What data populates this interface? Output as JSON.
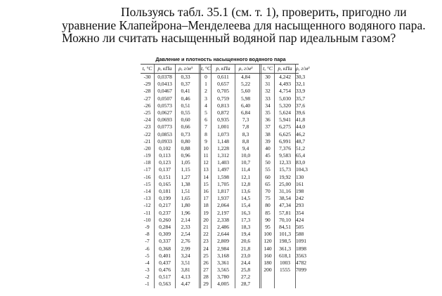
{
  "problem": {
    "text": "Пользуясь табл. 35.1 (см. т. 1), проверить, пригодно ли уравнение Клапейрона–Менделеева для насыщенного водяного пара. Можно ли считать насыщенный водяной пар идеальным газом?"
  },
  "table": {
    "title": "Давление и плотность насыщенного водяного пара",
    "headers": [
      "t, °C",
      "p, кПа",
      "ρ, г/м³",
      "t, °C",
      "p, кПа",
      "ρ, г/м³",
      "t, °C",
      "p, кПа",
      "ρ, г/м³"
    ],
    "rows": [
      [
        "-30",
        "0,0378",
        "0,33",
        "0",
        "0,611",
        "4,84",
        "30",
        "4,242",
        "30,3"
      ],
      [
        "-29",
        "0,0413",
        "0,37",
        "1",
        "0,657",
        "5,22",
        "31",
        "4,493",
        "32,1"
      ],
      [
        "-28",
        "0,0467",
        "0,41",
        "2",
        "0,705",
        "5,60",
        "32",
        "4,754",
        "33,9"
      ],
      [
        "-27",
        "0,0507",
        "0,46",
        "3",
        "0,759",
        "5,98",
        "33",
        "5,030",
        "35,7"
      ],
      [
        "-26",
        "0,0573",
        "0,51",
        "4",
        "0,813",
        "6,40",
        "34",
        "5,320",
        "37,6"
      ],
      [
        "-25",
        "0,0627",
        "0,55",
        "5",
        "0,872",
        "6,84",
        "35",
        "5,624",
        "39,6"
      ],
      [
        "-24",
        "0,0693",
        "0,60",
        "6",
        "0,935",
        "7,3",
        "36",
        "5,941",
        "41,8"
      ],
      [
        "-23",
        "0,0773",
        "0,66",
        "7",
        "1,001",
        "7,8",
        "37",
        "6,275",
        "44,0"
      ],
      [
        "-22",
        "0,0853",
        "0,73",
        "8",
        "1,073",
        "8,3",
        "38",
        "6,625",
        "46,2"
      ],
      [
        "-21",
        "0,0933",
        "0,80",
        "9",
        "1,148",
        "8,8",
        "39",
        "6,991",
        "48,7"
      ],
      [
        "-20",
        "0,102",
        "0,88",
        "10",
        "1,228",
        "9,4",
        "40",
        "7,376",
        "51,2"
      ],
      [
        "-19",
        "0,113",
        "0,96",
        "11",
        "1,312",
        "10,0",
        "45",
        "9,583",
        "65,4"
      ],
      [
        "-18",
        "0,123",
        "1,05",
        "12",
        "1,403",
        "10,7",
        "50",
        "12,33",
        "83,0"
      ],
      [
        "-17",
        "0,137",
        "1,15",
        "13",
        "1,497",
        "11,4",
        "55",
        "15,73",
        "104,3"
      ],
      [
        "-16",
        "0,151",
        "1,27",
        "14",
        "1,598",
        "12,1",
        "60",
        "19,92",
        "130"
      ],
      [
        "-15",
        "0,165",
        "1,38",
        "15",
        "1,705",
        "12,8",
        "65",
        "25,00",
        "161"
      ],
      [
        "-14",
        "0,181",
        "1,51",
        "16",
        "1,817",
        "13,6",
        "70",
        "31,16",
        "198"
      ],
      [
        "-13",
        "0,199",
        "1,65",
        "17",
        "1,937",
        "14,5",
        "75",
        "38,54",
        "242"
      ],
      [
        "-12",
        "0,217",
        "1,80",
        "18",
        "2,064",
        "15,4",
        "80",
        "47,34",
        "293"
      ],
      [
        "-11",
        "0,237",
        "1,96",
        "19",
        "2,197",
        "16,3",
        "85",
        "57,81",
        "354"
      ],
      [
        "-10",
        "0,260",
        "2,14",
        "20",
        "2,338",
        "17,3",
        "90",
        "70,10",
        "424"
      ],
      [
        "-9",
        "0,284",
        "2,33",
        "21",
        "2,486",
        "18,3",
        "95",
        "84,51",
        "505"
      ],
      [
        "-8",
        "0,309",
        "2,54",
        "22",
        "2,644",
        "19,4",
        "100",
        "101,3",
        "588"
      ],
      [
        "-7",
        "0,337",
        "2,76",
        "23",
        "2,809",
        "20,6",
        "120",
        "198,5",
        "1091"
      ],
      [
        "-6",
        "0,368",
        "2,99",
        "24",
        "2,984",
        "21,8",
        "140",
        "361,3",
        "1898"
      ],
      [
        "-5",
        "0,401",
        "3,24",
        "25",
        "3,168",
        "23,0",
        "160",
        "618,1",
        "3563"
      ],
      [
        "-4",
        "0,437",
        "3,51",
        "26",
        "3,361",
        "24,4",
        "180",
        "1003",
        "4782"
      ],
      [
        "-3",
        "0,476",
        "3,81",
        "27",
        "3,565",
        "25,8",
        "200",
        "1555",
        "7099"
      ],
      [
        "-2",
        "0,517",
        "4,13",
        "28",
        "3,780",
        "27,2",
        "",
        "",
        ""
      ],
      [
        "-1",
        "0,563",
        "4,47",
        "29",
        "4,005",
        "28,7",
        "",
        "",
        ""
      ]
    ]
  }
}
